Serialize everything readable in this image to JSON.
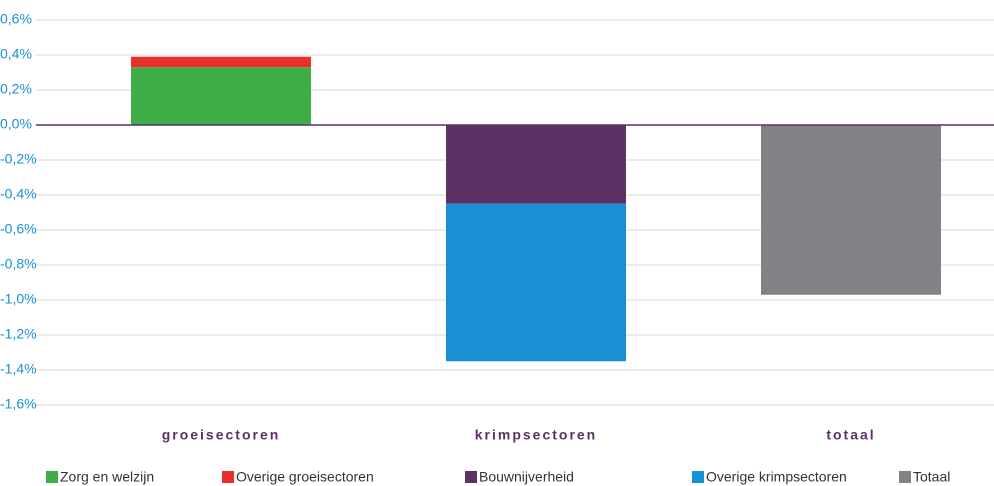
{
  "chart_data": {
    "type": "stacked_bar",
    "categories": [
      "groeisectoren",
      "krimpsectoren",
      "totaal"
    ],
    "series": [
      {
        "name": "Zorg en welzijn",
        "color": "#3fae49",
        "values": [
          0.33,
          null,
          null
        ]
      },
      {
        "name": "Overige groeisectoren",
        "color": "#e8302a",
        "values": [
          0.06,
          null,
          null
        ]
      },
      {
        "name": "Bouwnijverheid",
        "color": "#5b3266",
        "values": [
          null,
          -0.45,
          null
        ]
      },
      {
        "name": "Overige krimpsectoren",
        "color": "#1a90d4",
        "values": [
          null,
          -0.9,
          null
        ]
      },
      {
        "name": "Totaal",
        "color": "#808285",
        "values": [
          null,
          null,
          -0.97
        ]
      }
    ],
    "ylim": [
      -1.6,
      0.6
    ],
    "yticks": [
      {
        "value": 0.6,
        "label": "0,6%"
      },
      {
        "value": 0.4,
        "label": "0,4%"
      },
      {
        "value": 0.2,
        "label": "0,2%"
      },
      {
        "value": 0,
        "label": "0,0%"
      },
      {
        "value": -0.2,
        "label": "-0,2%"
      },
      {
        "value": -0.4,
        "label": "-0,4%"
      },
      {
        "value": -0.6,
        "label": "-0,6%"
      },
      {
        "value": -0.8,
        "label": "-0,8%"
      },
      {
        "value": -1.0,
        "label": "-1,0%"
      },
      {
        "value": -1.2,
        "label": "-1,2%"
      },
      {
        "value": -1.4,
        "label": "-1,4%"
      },
      {
        "value": -1.6,
        "label": "-1,6%"
      }
    ],
    "grid": true,
    "legend": "bottom"
  }
}
